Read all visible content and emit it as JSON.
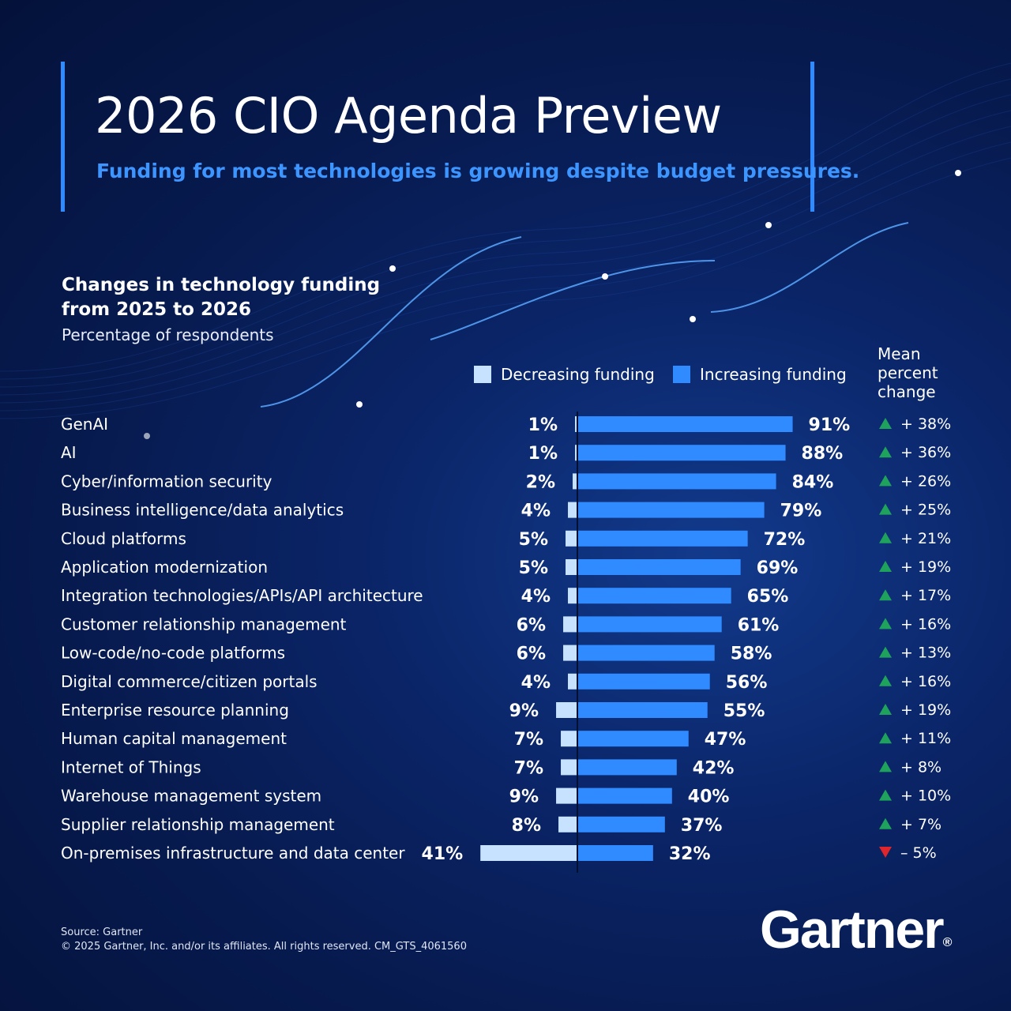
{
  "header": {
    "title": "2026 CIO Agenda Preview",
    "subtitle": "Funding for most technologies is growing despite budget pressures."
  },
  "colors": {
    "increasing": "#2f8bff",
    "decreasing": "#c7e2ff",
    "up_arrow": "#1fa35c",
    "down_arrow": "#e0262d",
    "accent": "#3d95ff"
  },
  "chart_data": {
    "type": "bar",
    "title": "Changes in technology funding from 2025 to 2026",
    "subtitle": "Percentage of respondents",
    "legend": [
      "Decreasing funding",
      "Increasing funding"
    ],
    "mean_header": "Mean percent change",
    "categories": [
      "GenAI",
      "AI",
      "Cyber/information security",
      "Business intelligence/data analytics",
      "Cloud platforms",
      "Application modernization",
      "Integration technologies/APIs/API architecture",
      "Customer relationship management",
      "Low-code/no-code platforms",
      "Digital commerce/citizen portals",
      "Enterprise resource planning",
      "Human capital management",
      "Internet of Things",
      "Warehouse management system",
      "Supplier relationship management",
      "On-premises infrastructure and data center"
    ],
    "series": [
      {
        "name": "Decreasing funding",
        "values": [
          1,
          1,
          2,
          4,
          5,
          5,
          4,
          6,
          6,
          4,
          9,
          7,
          7,
          9,
          8,
          41
        ]
      },
      {
        "name": "Increasing funding",
        "values": [
          91,
          88,
          84,
          79,
          72,
          69,
          65,
          61,
          58,
          56,
          55,
          47,
          42,
          40,
          37,
          32
        ]
      }
    ],
    "decreasing_labels": [
      "1%",
      "1%",
      "2%",
      "4%",
      "5%",
      "5%",
      "4%",
      "6%",
      "6%",
      "4%",
      "9%",
      "7%",
      "7%",
      "9%",
      "8%",
      "41%"
    ],
    "increasing_labels": [
      "91%",
      "88%",
      "84%",
      "79%",
      "72%",
      "69%",
      "65%",
      "61%",
      "58%",
      "56%",
      "55%",
      "47%",
      "42%",
      "40%",
      "37%",
      "32%"
    ],
    "mean_percent_change": [
      38,
      36,
      26,
      25,
      21,
      19,
      17,
      16,
      13,
      16,
      19,
      11,
      8,
      10,
      7,
      -5
    ],
    "mean_labels": [
      "+ 38%",
      "+ 36%",
      "+ 26%",
      "+ 25%",
      "+ 21%",
      "+ 19%",
      "+ 17%",
      "+ 16%",
      "+ 13%",
      "+ 16%",
      "+ 19%",
      "+ 11%",
      "+ 8%",
      "+ 10%",
      "+ 7%",
      "– 5%"
    ]
  },
  "footer": {
    "source": "Source: Gartner",
    "copyright": "© 2025 Gartner, Inc. and/or its affiliates. All rights reserved. CM_GTS_4061560",
    "logo": "Gartner",
    "logo_mark": "®"
  }
}
